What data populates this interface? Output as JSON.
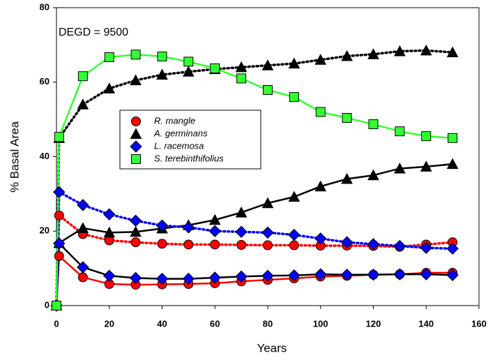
{
  "chart_data": {
    "type": "line",
    "xlabel": "Years",
    "ylabel": "% Basal Area",
    "annotation": "DEGD = 9500",
    "x": [
      0,
      1,
      10,
      20,
      30,
      40,
      50,
      60,
      70,
      80,
      90,
      100,
      110,
      120,
      130,
      140,
      150
    ],
    "xlim": [
      0,
      160
    ],
    "xticks": [
      0,
      20,
      40,
      60,
      80,
      100,
      120,
      140,
      160
    ],
    "ylim": [
      0,
      80
    ],
    "yticks": [
      0,
      20,
      40,
      60,
      80
    ],
    "grid": false,
    "series": [
      {
        "name": "R. mangle",
        "color": "#ff0000",
        "line_color": "#ff0000",
        "dash": false,
        "marker": "circle",
        "values": [
          0,
          13.3,
          7.6,
          5.8,
          5.6,
          5.7,
          5.8,
          6,
          6.5,
          6.9,
          7.3,
          7.8,
          8,
          8.3,
          8.4,
          8.8,
          8.8
        ]
      },
      {
        "name": "R. mangle",
        "color": "#ff0000",
        "line_color": "#ff0000",
        "dash": true,
        "marker": "circle",
        "values": [
          0,
          24.2,
          19.2,
          17.5,
          17,
          16.6,
          16.4,
          16.4,
          16.3,
          16.2,
          16.2,
          16.1,
          16.1,
          16,
          15.8,
          16.4,
          17
        ]
      },
      {
        "name": "A. germinans",
        "color": "#000000",
        "line_color": "#000000",
        "dash": false,
        "marker": "triangle",
        "values": [
          0,
          16.8,
          20.8,
          19.6,
          19.8,
          20.7,
          21.6,
          23,
          25,
          27.5,
          29.2,
          32,
          34,
          35,
          36.8,
          37.3,
          38
        ]
      },
      {
        "name": "A. germinans",
        "color": "#000000",
        "line_color": "#000000",
        "dash": true,
        "marker": "triangle",
        "values": [
          0,
          45,
          54,
          58.3,
          60.5,
          62,
          62.8,
          63.5,
          64,
          64.5,
          65,
          66,
          67,
          67.5,
          68.3,
          68.5,
          68
        ]
      },
      {
        "name": "L. racemosa",
        "color": "#0000ff",
        "line_color": "#000000",
        "dash": false,
        "marker": "diamond",
        "values": [
          0,
          16.7,
          10.3,
          8,
          7.4,
          7.2,
          7.2,
          7.5,
          7.8,
          8,
          8.1,
          8.4,
          8.3,
          8.3,
          8.4,
          8.4,
          8.2
        ]
      },
      {
        "name": "L. racemosa",
        "color": "#0000ff",
        "line_color": "#0000ff",
        "dash": true,
        "marker": "diamond",
        "values": [
          0,
          30.5,
          27,
          24.5,
          22.8,
          21.5,
          21,
          20,
          19.8,
          19.6,
          19,
          18,
          17,
          16.5,
          16,
          15.5,
          15.3
        ]
      },
      {
        "name": "S. terebinthifolius",
        "color": "#33ff33",
        "line_color": "#33ff33",
        "dash": false,
        "marker": "square",
        "values": [
          0,
          45.3,
          61.6,
          66.7,
          67.4,
          66.9,
          65.5,
          63.7,
          61,
          57.9,
          56,
          52,
          50.4,
          48.7,
          46.8,
          45.5,
          45
        ]
      }
    ]
  }
}
